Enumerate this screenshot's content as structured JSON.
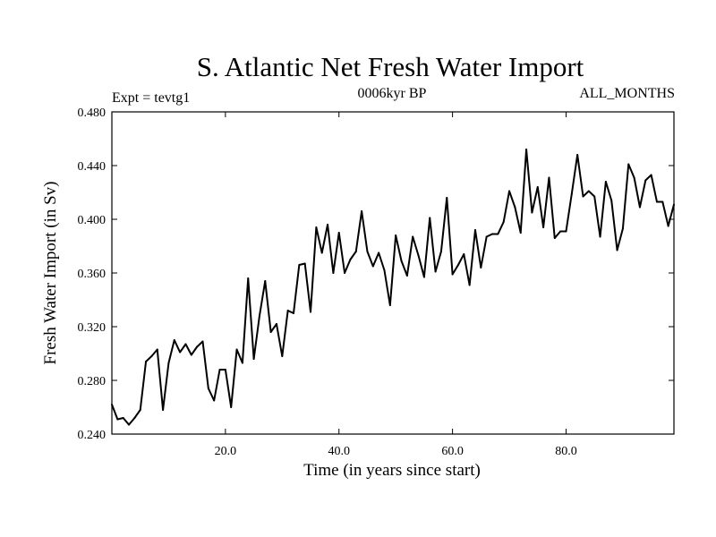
{
  "chart_data": {
    "type": "line",
    "title": "S. Atlantic Net Fresh Water Import",
    "left_label": "Expt = tevtg1",
    "center_label": "0006kyr BP",
    "right_label": "ALL_MONTHS",
    "xlabel": "Time (in years since start)",
    "ylabel": "Fresh Water Import (in Sv)",
    "xlim": [
      0,
      99
    ],
    "ylim": [
      0.24,
      0.48
    ],
    "x_ticks": [
      20,
      40,
      60,
      80
    ],
    "x_tick_labels": [
      "20.0",
      "40.0",
      "60.0",
      "80.0"
    ],
    "y_ticks": [
      0.24,
      0.28,
      0.32,
      0.36,
      0.4,
      0.44,
      0.48
    ],
    "y_tick_labels": [
      "0.240",
      "0.280",
      "0.320",
      "0.360",
      "0.400",
      "0.440",
      "0.480"
    ],
    "series": [
      {
        "name": "Fresh Water Import",
        "color": "#000000",
        "values": [
          0.262,
          0.251,
          0.252,
          0.247,
          0.252,
          0.258,
          0.294,
          0.298,
          0.303,
          0.258,
          0.293,
          0.31,
          0.301,
          0.307,
          0.299,
          0.305,
          0.309,
          0.274,
          0.265,
          0.288,
          0.288,
          0.26,
          0.303,
          0.293,
          0.356,
          0.296,
          0.328,
          0.354,
          0.316,
          0.322,
          0.298,
          0.332,
          0.33,
          0.366,
          0.367,
          0.331,
          0.394,
          0.375,
          0.396,
          0.36,
          0.39,
          0.36,
          0.37,
          0.376,
          0.406,
          0.376,
          0.365,
          0.375,
          0.362,
          0.336,
          0.388,
          0.369,
          0.358,
          0.387,
          0.373,
          0.357,
          0.401,
          0.361,
          0.376,
          0.416,
          0.359,
          0.366,
          0.374,
          0.351,
          0.392,
          0.364,
          0.387,
          0.389,
          0.389,
          0.398,
          0.421,
          0.409,
          0.39,
          0.452,
          0.405,
          0.424,
          0.394,
          0.431,
          0.386,
          0.391,
          0.391,
          0.419,
          0.448,
          0.417,
          0.421,
          0.417,
          0.387,
          0.428,
          0.414,
          0.377,
          0.393,
          0.441,
          0.431,
          0.409,
          0.429,
          0.433,
          0.413,
          0.413,
          0.395,
          0.411
        ]
      }
    ]
  }
}
